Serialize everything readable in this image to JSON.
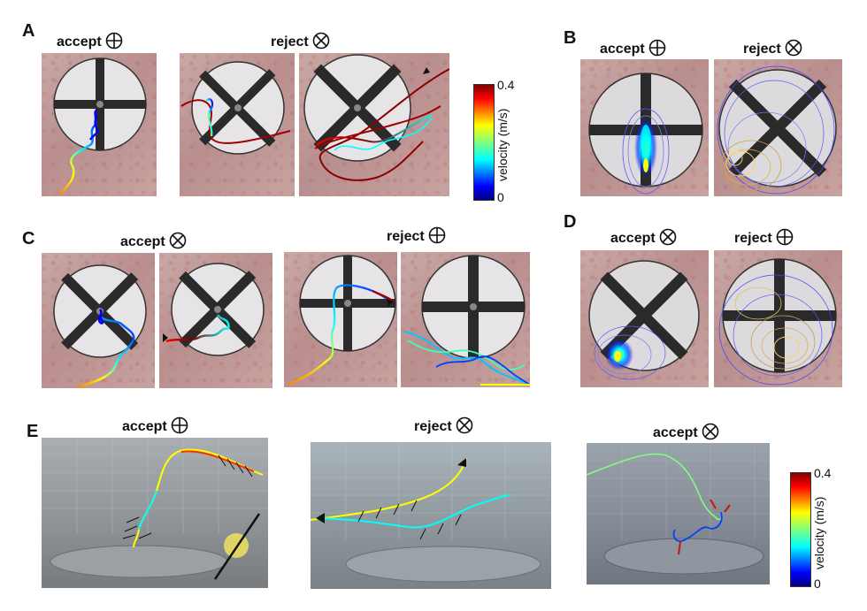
{
  "panels": {
    "A": {
      "letter": "A",
      "accept_label": "accept",
      "reject_label": "reject"
    },
    "B": {
      "letter": "B",
      "accept_label": "accept",
      "reject_label": "reject"
    },
    "C": {
      "letter": "C",
      "accept_label": "accept",
      "reject_label": "reject"
    },
    "D": {
      "letter": "D",
      "accept_label": "accept",
      "reject_label": "reject"
    },
    "E": {
      "letter": "E",
      "left_label": "accept",
      "middle_label": "reject",
      "right_label": "accept"
    }
  },
  "symbols": {
    "cross": "plus-in-circle",
    "x": "x-in-circle"
  },
  "colorbar_top": {
    "max": "0.4",
    "min": "0",
    "title": "velocity (m/s)"
  },
  "colorbar_bottom": {
    "max": "0.4",
    "min": "0",
    "title": "velocity (m/s)"
  },
  "colors": {
    "jet": [
      "#00007f",
      "#0000ff",
      "#007fff",
      "#00ffff",
      "#7fff7f",
      "#ffff00",
      "#ff7f00",
      "#ff0000",
      "#7f0000"
    ],
    "stripe": "#2a2a2a",
    "disk": "#e6e4e6"
  }
}
